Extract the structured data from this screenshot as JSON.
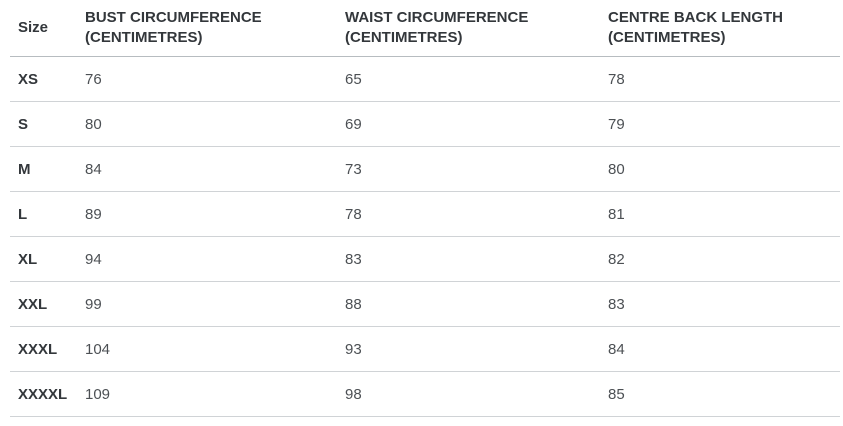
{
  "size_chart": {
    "columns": {
      "size": {
        "label": "Size"
      },
      "bust": {
        "line1": "BUST CIRCUMFERENCE",
        "line2": "(CENTIMETRES)"
      },
      "waist": {
        "line1": "WAIST CIRCUMFERENCE",
        "line2": "(CENTIMETRES)"
      },
      "back": {
        "line1": "CENTRE BACK LENGTH",
        "line2": "(CENTIMETRES)"
      }
    },
    "rows": [
      {
        "size": "XS",
        "bust": "76",
        "waist": "65",
        "back": "78"
      },
      {
        "size": "S",
        "bust": "80",
        "waist": "69",
        "back": "79"
      },
      {
        "size": "M",
        "bust": "84",
        "waist": "73",
        "back": "80"
      },
      {
        "size": "L",
        "bust": "89",
        "waist": "78",
        "back": "81"
      },
      {
        "size": "XL",
        "bust": "94",
        "waist": "83",
        "back": "82"
      },
      {
        "size": "XXL",
        "bust": "99",
        "waist": "88",
        "back": "83"
      },
      {
        "size": "XXXL",
        "bust": "104",
        "waist": "93",
        "back": "84"
      },
      {
        "size": "XXXXL",
        "bust": "109",
        "waist": "98",
        "back": "85"
      }
    ],
    "colors": {
      "header_text": "#33373b",
      "body_text": "#4c5054",
      "header_border": "#b7bcc0",
      "row_border": "#d0d3d6"
    }
  },
  "chart_data": {
    "type": "table",
    "title": "",
    "columns": [
      "Size",
      "BUST CIRCUMFERENCE (CENTIMETRES)",
      "WAIST CIRCUMFERENCE (CENTIMETRES)",
      "CENTRE BACK LENGTH (CENTIMETRES)"
    ],
    "rows": [
      [
        "XS",
        76,
        65,
        78
      ],
      [
        "S",
        80,
        69,
        79
      ],
      [
        "M",
        84,
        73,
        80
      ],
      [
        "L",
        89,
        78,
        81
      ],
      [
        "XL",
        94,
        83,
        82
      ],
      [
        "XXL",
        99,
        88,
        83
      ],
      [
        "XXXL",
        104,
        93,
        84
      ],
      [
        "XXXXL",
        109,
        98,
        85
      ]
    ]
  }
}
